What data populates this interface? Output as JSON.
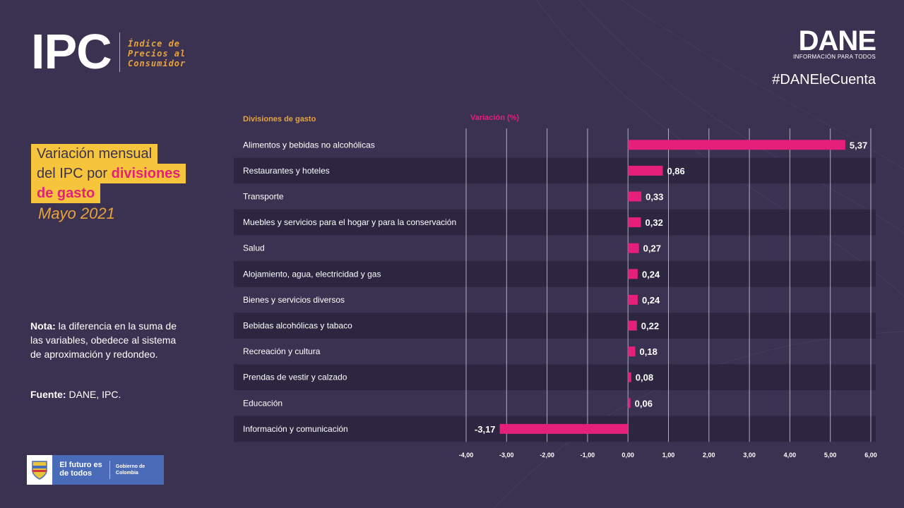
{
  "header": {
    "logo_main": "IPC",
    "logo_sub": [
      "Índice de",
      "Precios al",
      "Consumidor"
    ],
    "brand": "DANE",
    "brand_tagline": "INFORMACIÓN PARA TODOS",
    "hashtag": "#DANEleCuenta"
  },
  "title": {
    "line1": "Variación mensual",
    "line2_prefix": "del IPC por ",
    "line2_highlight": "divisiones",
    "line3_highlight": "de gasto",
    "period": "Mayo 2021"
  },
  "note": {
    "label": "Nota:",
    "text": " la diferencia en la suma de las variables, obedece al sistema de aproximación y redondeo."
  },
  "source": {
    "label": "Fuente:",
    "text": " DANE, IPC."
  },
  "footer": {
    "gov_text": "El futuro es de todos",
    "gov_name": "Gobierno de Colombia"
  },
  "colors": {
    "background": "#3a3250",
    "bar": "#e5207a",
    "accent_yellow": "#f6c53b",
    "accent_orange": "#e9a33b",
    "band": "#2c2641"
  },
  "chart_data": {
    "type": "bar",
    "orientation": "horizontal",
    "column_headers": {
      "categories": "Divisiones de gasto",
      "values": "Variación (%)"
    },
    "categories": [
      "Alimentos y bebidas no alcohólicas",
      "Restaurantes y hoteles",
      "Transporte",
      "Muebles y servicios para el hogar y para la conservación",
      "Salud",
      "Alojamiento, agua, electricidad y gas",
      "Bienes y servicios diversos",
      "Bebidas alcohólicas y tabaco",
      "Recreación y cultura",
      "Prendas de vestir y calzado",
      "Educación",
      "Información y comunicación"
    ],
    "values": [
      5.37,
      0.86,
      0.33,
      0.32,
      0.27,
      0.24,
      0.24,
      0.22,
      0.18,
      0.08,
      0.06,
      -3.17
    ],
    "value_labels": [
      "5,37",
      "0,86",
      "0,33",
      "0,32",
      "0,27",
      "0,24",
      "0,24",
      "0,22",
      "0,18",
      "0,08",
      "0,06",
      "-3,17"
    ],
    "xlim": [
      -4,
      6
    ],
    "ticks": [
      -4,
      -3,
      -2,
      -1,
      0,
      1,
      2,
      3,
      4,
      5,
      6
    ],
    "tick_labels": [
      "-4,00",
      "-3,00",
      "-2,00",
      "-1,00",
      "0,00",
      "1,00",
      "2,00",
      "3,00",
      "4,00",
      "5,00",
      "6,00"
    ],
    "grid": true
  }
}
